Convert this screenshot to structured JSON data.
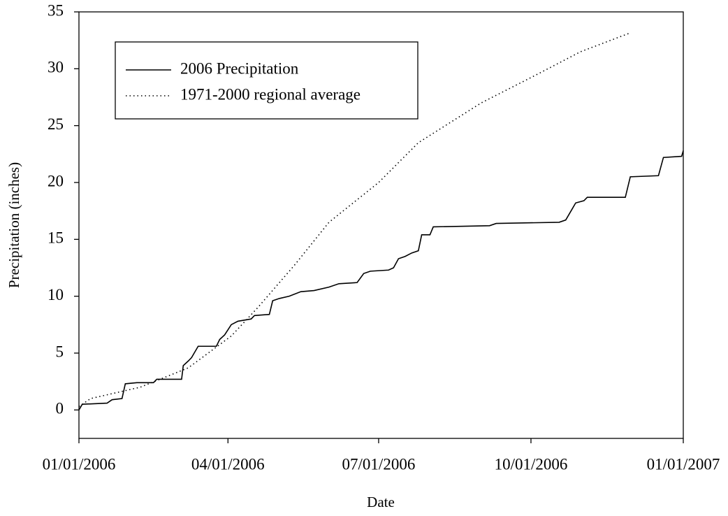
{
  "chart_data": {
    "type": "line",
    "xlabel": "Date",
    "ylabel": "Precipitation (inches)",
    "xlim": [
      "01/01/2006",
      "01/01/2007"
    ],
    "xticks": [
      "01/01/2006",
      "04/01/2006",
      "07/01/2006",
      "10/01/2006",
      "01/01/2007"
    ],
    "ylim": [
      -2.5,
      35
    ],
    "yticks": [
      0,
      5,
      10,
      15,
      20,
      25,
      30,
      35
    ],
    "grid": false,
    "legend": "upper left",
    "series": [
      {
        "name": "2006 Precipitation",
        "color": "#000000",
        "style": "solid",
        "x": [
          "01/01/2006",
          "01/03/2006",
          "01/18/2006",
          "01/21/2006",
          "01/27/2006",
          "01/29/2006",
          "02/05/2006",
          "02/15/2006",
          "02/17/2006",
          "03/04/2006",
          "03/05/2006",
          "03/08/2006",
          "03/10/2006",
          "03/14/2006",
          "03/25/2006",
          "03/27/2006",
          "03/30/2006",
          "04/03/2006",
          "04/07/2006",
          "04/15/2006",
          "04/17/2006",
          "04/26/2006",
          "04/28/2006",
          "05/02/2006",
          "05/08/2006",
          "05/15/2006",
          "05/23/2006",
          "06/01/2006",
          "06/07/2006",
          "06/18/2006",
          "06/22/2006",
          "06/26/2006",
          "07/07/2006",
          "07/10/2006",
          "07/13/2006",
          "07/17/2006",
          "07/21/2006",
          "07/25/2006",
          "07/27/2006",
          "08/01/2006",
          "08/03/2006",
          "09/06/2006",
          "09/10/2006",
          "10/18/2006",
          "10/22/2006",
          "10/26/2006",
          "10/28/2006",
          "11/02/2006",
          "11/04/2006",
          "11/27/2006",
          "11/30/2006",
          "12/17/2006",
          "12/20/2006",
          "12/31/2006",
          "01/01/2007"
        ],
        "values": [
          0,
          0.5,
          0.6,
          0.9,
          1.0,
          2.3,
          2.4,
          2.4,
          2.7,
          2.7,
          3.9,
          4.3,
          4.6,
          5.6,
          5.6,
          6.2,
          6.6,
          7.5,
          7.8,
          8.0,
          8.3,
          8.4,
          9.6,
          9.8,
          10.0,
          10.4,
          10.5,
          10.8,
          11.1,
          11.2,
          12.0,
          12.2,
          12.3,
          12.5,
          13.3,
          13.5,
          13.8,
          14.0,
          15.4,
          15.4,
          16.1,
          16.2,
          16.4,
          16.5,
          16.7,
          17.7,
          18.2,
          18.4,
          18.7,
          18.7,
          20.5,
          20.6,
          22.2,
          22.3,
          22.8
        ]
      },
      {
        "name": "1971-2000 regional average",
        "color": "#000000",
        "style": "dotted",
        "x": [
          "01/01/2006",
          "01/08/2006",
          "02/07/2006",
          "03/08/2006",
          "04/03/2006",
          "04/19/2006",
          "05/11/2006",
          "06/01/2006",
          "07/01/2006",
          "07/25/2006",
          "09/01/2006",
          "10/02/2006",
          "10/31/2006",
          "11/29/2006"
        ],
        "values": [
          0.3,
          1.0,
          2.0,
          3.7,
          6.5,
          9.0,
          12.7,
          16.5,
          20.0,
          23.5,
          27.0,
          29.3,
          31.5,
          33.1
        ]
      }
    ]
  }
}
